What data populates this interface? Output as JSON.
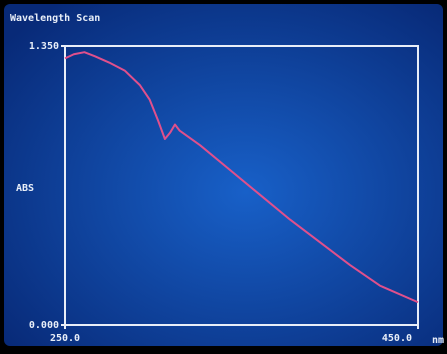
{
  "chart_data": {
    "type": "line",
    "title": "Wavelength Scan",
    "y_label": "ABS",
    "x_unit": "nm",
    "x": [
      250,
      255,
      261,
      267,
      275,
      284,
      292.5,
      298,
      302.7,
      306.6,
      309.5,
      312.3,
      315,
      326.5,
      343.5,
      360.5,
      377.5,
      394.5,
      411.5,
      428.5,
      450
    ],
    "series": [
      {
        "color": "#e0508c",
        "values": [
          1.29,
          1.31,
          1.32,
          1.3,
          1.27,
          1.23,
          1.16,
          1.09,
          0.99,
          0.9,
          0.93,
          0.97,
          0.94,
          0.87,
          0.75,
          0.63,
          0.51,
          0.4,
          0.29,
          0.19,
          0.11
        ]
      }
    ],
    "xlim": [
      250,
      450
    ],
    "ylim": [
      0,
      1.35
    ],
    "xticks": [
      {
        "value": 250,
        "label": "250.0"
      },
      {
        "value": 450,
        "label": "450.0"
      }
    ],
    "yticks": [
      {
        "value": 0,
        "label": "0.000"
      },
      {
        "value": 1.35,
        "label": "1.350"
      }
    ]
  }
}
